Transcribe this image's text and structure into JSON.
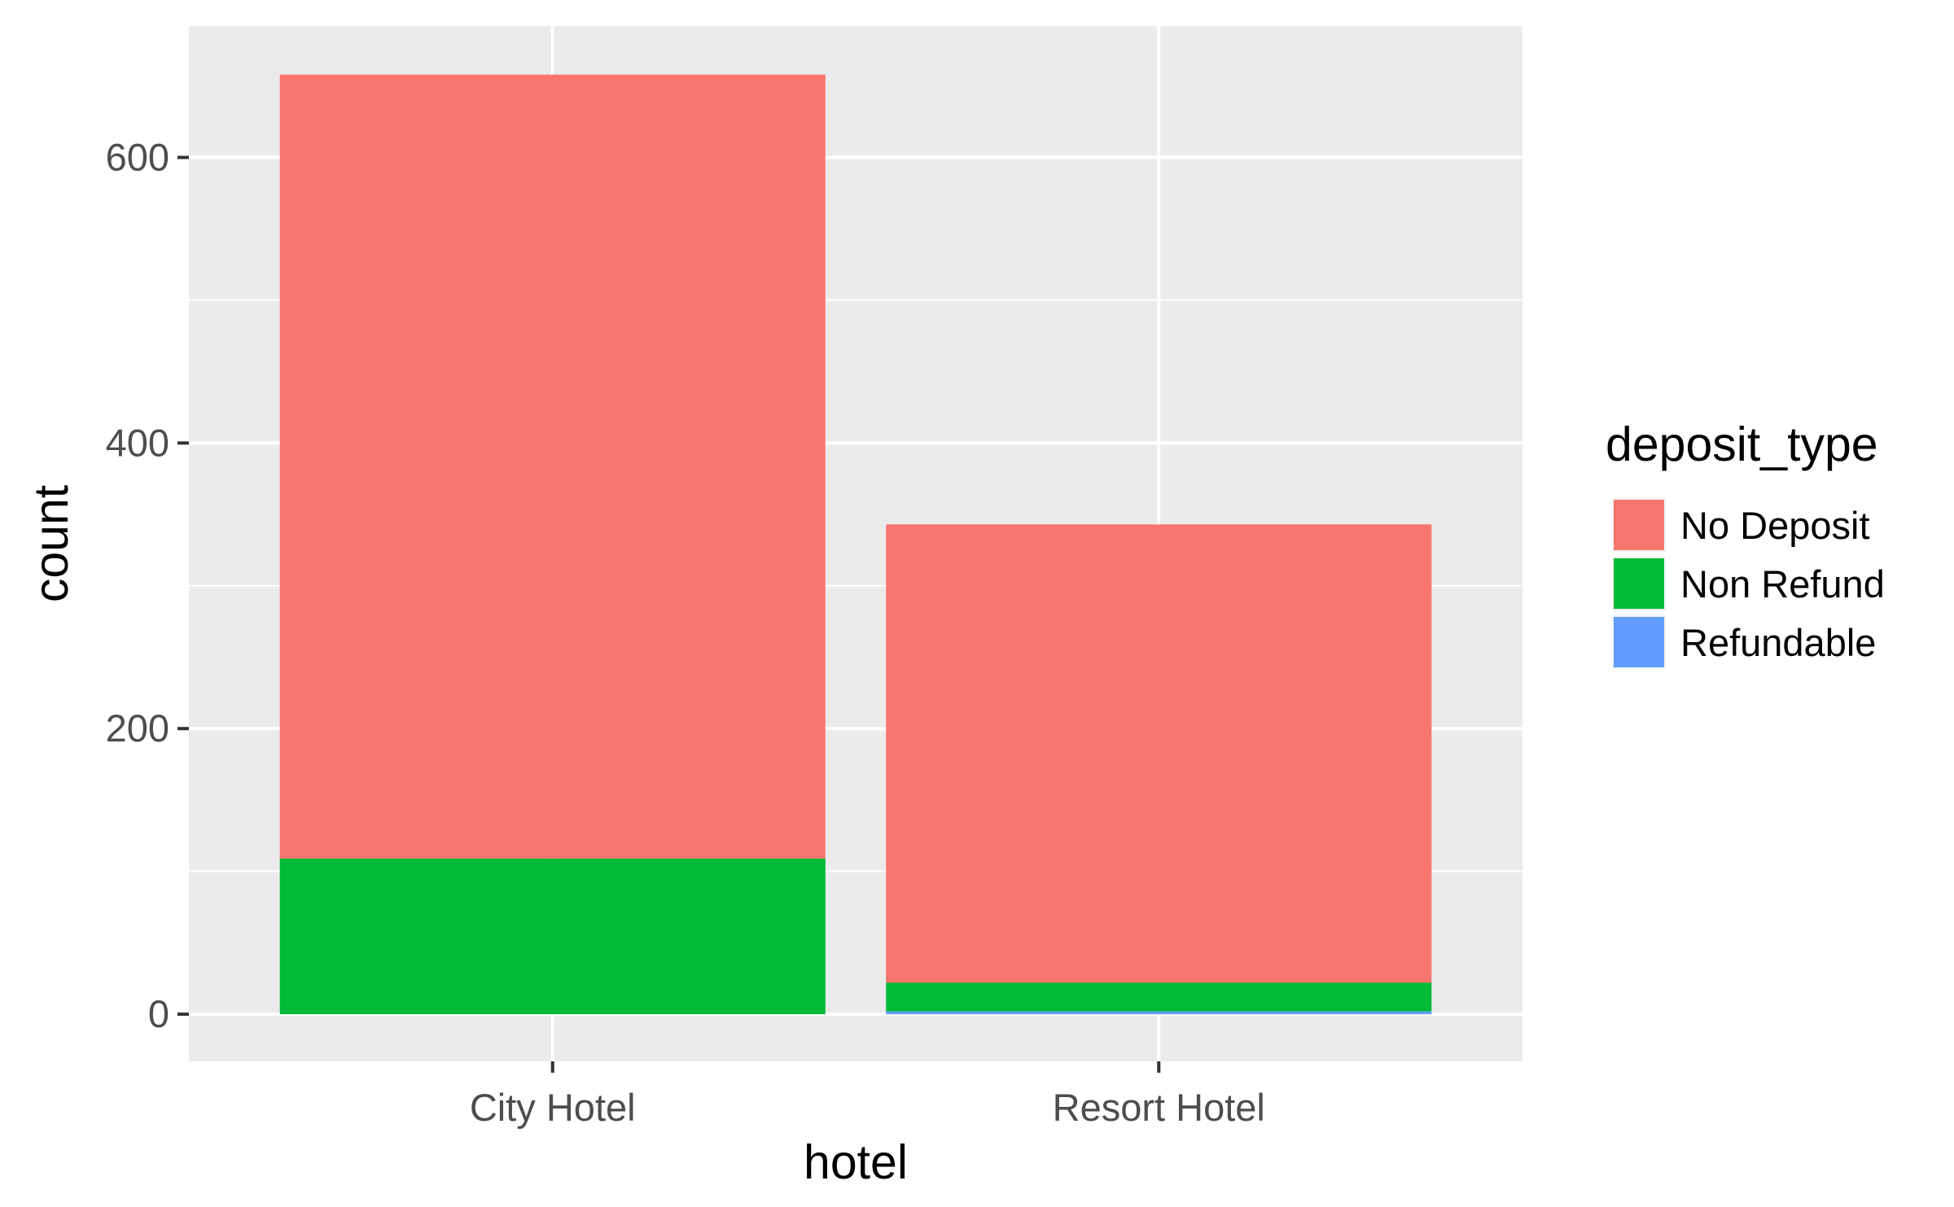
{
  "chart_data": {
    "type": "bar",
    "stacked": true,
    "categories": [
      "City Hotel",
      "Resort Hotel"
    ],
    "series": [
      {
        "name": "No Deposit",
        "values": [
          549,
          321
        ],
        "color": "#F8766D"
      },
      {
        "name": "Non Refund",
        "values": [
          109,
          20
        ],
        "color": "#00BA38"
      },
      {
        "name": "Refundable",
        "values": [
          0,
          2
        ],
        "color": "#619CFF"
      }
    ],
    "xlabel": "hotel",
    "ylabel": "count",
    "ylim": [
      -33,
      692
    ],
    "yticks": [
      0,
      200,
      400,
      600
    ],
    "ytick_labels": [
      "0",
      "200",
      "400",
      "600"
    ],
    "grid": true,
    "panel_background": "#EBEBEB",
    "gridline_color": "#FFFFFF",
    "legend": {
      "title": "deposit_type",
      "position": "right"
    }
  }
}
